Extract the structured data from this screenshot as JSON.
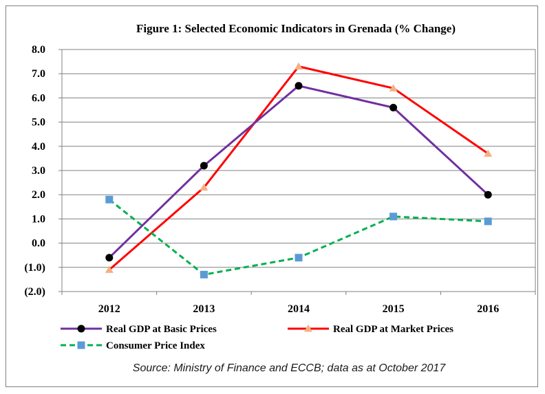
{
  "chart_data": {
    "type": "line",
    "title": "Figure 1: Selected Economic Indicators  in Grenada (% Change)",
    "categories": [
      "2012",
      "2013",
      "2014",
      "2015",
      "2016"
    ],
    "ylim": [
      -2.0,
      8.0
    ],
    "yticks": [
      8.0,
      7.0,
      6.0,
      5.0,
      4.0,
      3.0,
      2.0,
      1.0,
      0.0,
      -1.0,
      -2.0
    ],
    "ytick_labels": [
      "8.0",
      "7.0",
      "6.0",
      "5.0",
      "4.0",
      "3.0",
      "2.0",
      "1.0",
      "0.0",
      "(1.0)",
      "(2.0)"
    ],
    "grid": true,
    "legend_position": "bottom",
    "series": [
      {
        "name": "Real GDP at Basic Prices",
        "values": [
          -0.6,
          3.2,
          6.5,
          5.6,
          2.0
        ],
        "color": "#7030a0",
        "marker": "circle",
        "marker_color": "#000000",
        "dash": false
      },
      {
        "name": "Real GDP at Market Prices",
        "values": [
          -1.1,
          2.3,
          7.3,
          6.4,
          3.7
        ],
        "color": "#ff0000",
        "marker": "triangle",
        "marker_color": "#f4b183",
        "dash": false
      },
      {
        "name": "Consumer Price Index",
        "values": [
          1.8,
          -1.3,
          -0.6,
          1.1,
          0.9
        ],
        "color": "#00b050",
        "marker": "square",
        "marker_color": "#5b9bd5",
        "dash": true
      }
    ],
    "source": "Source: Ministry of Finance and ECCB; data as at October 2017"
  }
}
